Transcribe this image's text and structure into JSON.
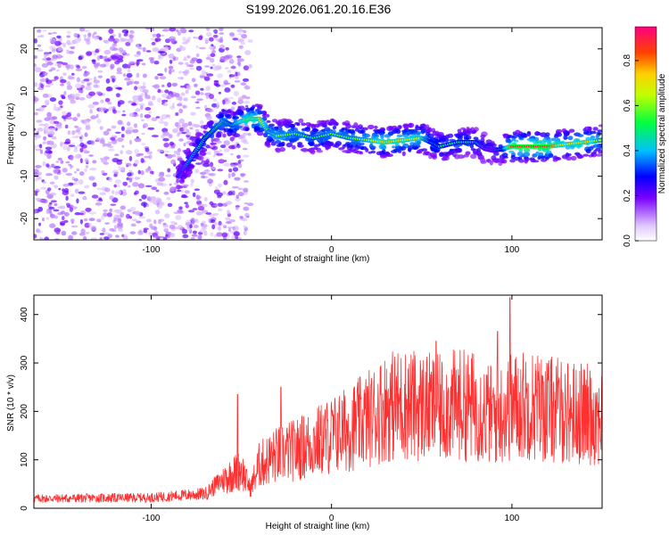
{
  "title": "S199.2026.061.20.16.E36",
  "chart_data": [
    {
      "type": "heatmap",
      "name": "spectrogram",
      "xlabel": "Height of straight line (km)",
      "ylabel": "Frequency (Hz)",
      "xlim": [
        -165,
        150
      ],
      "ylim": [
        -25,
        25
      ],
      "xticks": [
        -100,
        0,
        100
      ],
      "yticks": [
        -20,
        -10,
        0,
        10,
        20
      ],
      "ridge": {
        "description": "frequency of maximum spectral amplitude vs height",
        "x": [
          -85,
          -80,
          -75,
          -70,
          -65,
          -60,
          -55,
          -50,
          -45,
          -40,
          -35,
          -30,
          -20,
          -10,
          0,
          10,
          20,
          30,
          40,
          50,
          55,
          60,
          70,
          80,
          85,
          90,
          95,
          100,
          110,
          120,
          130,
          140,
          150
        ],
        "y": [
          -10,
          -7,
          -4,
          -1,
          1,
          3,
          2,
          3,
          3.5,
          3.5,
          0.5,
          -0.5,
          0,
          -1,
          0,
          -1,
          -1.5,
          -2,
          -1.5,
          -1,
          -2,
          -3,
          -2,
          -2,
          -3.5,
          -4,
          -3.5,
          -3,
          -3,
          -3,
          -2.5,
          -2,
          -1.5
        ],
        "peak_amplitude": [
          0.3,
          0.4,
          0.45,
          0.5,
          0.55,
          0.6,
          0.55,
          0.7,
          0.8,
          0.75,
          0.6,
          0.65,
          0.6,
          0.55,
          0.6,
          0.6,
          0.65,
          0.8,
          0.75,
          0.7,
          0.5,
          0.5,
          0.5,
          0.45,
          0.4,
          0.35,
          0.5,
          0.9,
          0.95,
          0.9,
          0.7,
          0.8,
          0.6
        ]
      },
      "noise_region_x": [
        -165,
        -45
      ],
      "colorbar": {
        "label": "Normalized spectral amplitude",
        "range": [
          0,
          0.95
        ],
        "ticks": [
          "0.0",
          "0.2",
          "0.4",
          "0.6",
          "0.8"
        ]
      }
    },
    {
      "type": "line",
      "name": "snr",
      "xlabel": "Height of straight line (km)",
      "ylabel": "SNR (10 * v/v)",
      "xlim": [
        -165,
        150
      ],
      "ylim": [
        0,
        440
      ],
      "xticks": [
        -100,
        0,
        100
      ],
      "yticks": [
        0,
        100,
        200,
        300,
        400
      ],
      "color": "#ff3030",
      "envelope": {
        "x": [
          -165,
          -100,
          -70,
          -60,
          -50,
          -45,
          -40,
          -30,
          -20,
          -10,
          0,
          10,
          20,
          30,
          40,
          50,
          60,
          70,
          80,
          90,
          100,
          110,
          120,
          130,
          140,
          150
        ],
        "y": [
          20,
          22,
          30,
          60,
          80,
          40,
          90,
          110,
          120,
          135,
          150,
          165,
          185,
          210,
          215,
          210,
          205,
          215,
          210,
          190,
          210,
          215,
          205,
          200,
          195,
          190
        ]
      },
      "notable_peaks": [
        {
          "x": -52,
          "y": 235
        },
        {
          "x": -28,
          "y": 250
        },
        {
          "x": 22,
          "y": 255
        },
        {
          "x": 58,
          "y": 345
        },
        {
          "x": 92,
          "y": 365
        },
        {
          "x": 99,
          "y": 435
        }
      ]
    }
  ]
}
